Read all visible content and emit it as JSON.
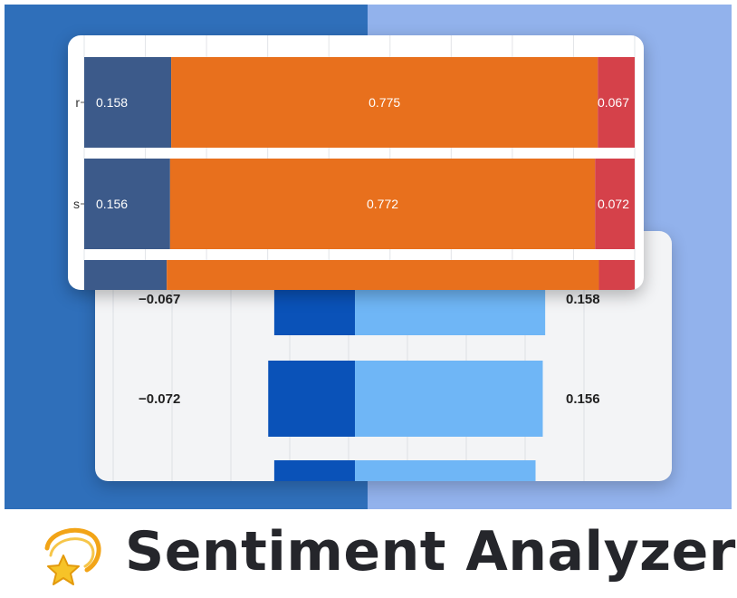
{
  "title": "Sentiment Analyzer",
  "title_icon": "dizzy-star-icon",
  "colors": {
    "hero_left": "#2f6fba",
    "hero_right": "#92b2ec",
    "negative": "#3c5a8a",
    "neutral": "#e8701d",
    "positive": "#d5414a",
    "diverge_negative": "#0a52b8",
    "diverge_positive": "#6fb6f6",
    "title_text": "#25262b"
  },
  "stacked_chart": {
    "rows": [
      {
        "tick_label": "r",
        "negative": 0.158,
        "neutral": 0.775,
        "positive": 0.067
      },
      {
        "tick_label": "s",
        "negative": 0.156,
        "neutral": 0.772,
        "positive": 0.072
      },
      {
        "tick_label": "",
        "negative": 0.15,
        "neutral": 0.785,
        "positive": 0.065
      }
    ]
  },
  "diverging_chart": {
    "rows": [
      {
        "negative_label": "−0.067",
        "positive_label": "0.158",
        "negative": 0.067,
        "positive": 0.158
      },
      {
        "negative_label": "−0.072",
        "positive_label": "0.156",
        "negative": 0.072,
        "positive": 0.156
      },
      {
        "negative_label": "",
        "positive_label": "",
        "negative": 0.067,
        "positive": 0.15
      }
    ]
  }
}
